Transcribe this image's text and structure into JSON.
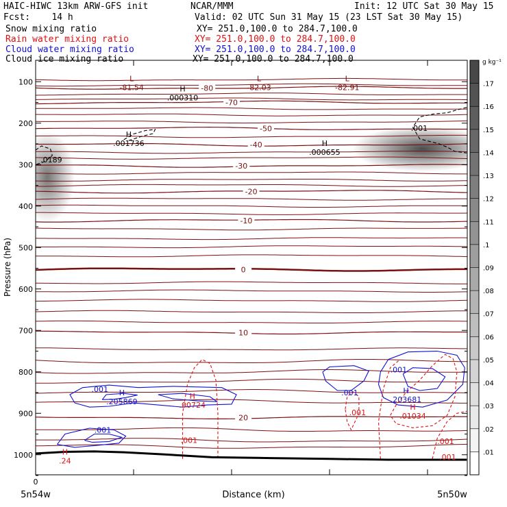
{
  "header": {
    "line1_left": "HAIC-HIWC 13km ARW-GFS init",
    "line1_mid": "NCAR/MMM",
    "line1_right": "Init: 12 UTC Sat 30 May 15",
    "line2_left": "Fcst:    14 h",
    "line2_right": "Valid: 02 UTC Sun 31 May 15 (23 LST Sat 30 May 15)",
    "fields": [
      {
        "name": "Snow mixing ratio",
        "xy": "XY= 251.0,100.0 to 284.7,100.0",
        "color": "#000000"
      },
      {
        "name": "Rain water mixing ratio",
        "xy": "XY= 251.0,100.0 to 284.7,100.0",
        "color": "#e01010"
      },
      {
        "name": "Cloud water mixing ratio",
        "xy": "XY= 251.0,100.0 to 284.7,100.0",
        "color": "#1010d0"
      },
      {
        "name": "Cloud ice mixing ratio",
        "xy": "XY= 251.0,100.0 to 284.7,100.0",
        "color": "#000000"
      }
    ]
  },
  "colors": {
    "temperature": "#7a1010",
    "rain": "#e01010",
    "cloud_water": "#1010d0",
    "cloud_ice": "#000000",
    "snow_shade": "#404040"
  },
  "chart_data": {
    "type": "cross-section",
    "ylabel": "Pressure (hPa)",
    "xlabel": "Distance (km)",
    "x_range_km": [
      0,
      440
    ],
    "x_ticks": [
      0,
      100,
      200,
      300,
      400
    ],
    "x_tick_labels": [
      "0",
      "",
      "",
      "",
      ""
    ],
    "x_end_labels": [
      "5n54w",
      "5n50w"
    ],
    "y_range": [
      50,
      1050
    ],
    "y_ticks": [
      100,
      200,
      300,
      400,
      500,
      600,
      700,
      800,
      900,
      1000
    ],
    "temperature_contours": [
      {
        "label": "-80",
        "p": 115,
        "label_x": 175
      },
      {
        "label": "-70",
        "p": 150,
        "label_x": 200
      },
      {
        "label": "-50",
        "p": 213,
        "label_x": 235
      },
      {
        "label": "-40",
        "p": 252,
        "label_x": 225
      },
      {
        "label": "-30",
        "p": 303,
        "label_x": 210
      },
      {
        "label": "-20",
        "p": 365,
        "label_x": 220
      },
      {
        "label": "-10",
        "p": 435,
        "label_x": 215
      },
      {
        "label": "0",
        "p": 553,
        "label_x": 212
      },
      {
        "label": "10",
        "p": 705,
        "label_x": 212
      },
      {
        "label": "20",
        "p": 910,
        "label_x": 212
      }
    ],
    "extrema": [
      {
        "letter": "L",
        "value": "-81.54",
        "x": 98,
        "p": 102,
        "color": "temperature"
      },
      {
        "letter": "L",
        "value": "-82.03",
        "x": 228,
        "p": 102,
        "color": "temperature"
      },
      {
        "letter": "L",
        "value": "-82.91",
        "x": 318,
        "p": 102,
        "color": "temperature"
      },
      {
        "letter": "H",
        "value": ".000310",
        "x": 150,
        "p": 127,
        "color": "cloud_ice"
      },
      {
        "letter": "H",
        "value": ".001736",
        "x": 95,
        "p": 237,
        "color": "cloud_ice"
      },
      {
        "letter": "H",
        "value": ".000655",
        "x": 295,
        "p": 258,
        "color": "cloud_ice"
      },
      {
        "letter": "H",
        "value": ".205869",
        "x": 88,
        "p": 860,
        "color": "cloud_water"
      },
      {
        "letter": "H",
        "value": ".203681",
        "x": 378,
        "p": 855,
        "color": "cloud_water"
      },
      {
        "letter": "H",
        "value": ".00724",
        "x": 160,
        "p": 868,
        "color": "rain"
      },
      {
        "letter": "H",
        "value": ".01034",
        "x": 385,
        "p": 895,
        "color": "rain"
      },
      {
        "letter": "H",
        "value": ".24",
        "x": 30,
        "p": 1003,
        "color": "rain"
      }
    ],
    "contour_labels": [
      {
        "text": ".0189",
        "x": 5,
        "p": 288,
        "color": "cloud_ice"
      },
      {
        "text": ".001",
        "x": 383,
        "p": 212,
        "color": "cloud_ice"
      },
      {
        "text": ".001",
        "x": 57,
        "p": 842,
        "color": "cloud_water"
      },
      {
        "text": ".001",
        "x": 60,
        "p": 940,
        "color": "cloud_water"
      },
      {
        "text": ".001",
        "x": 312,
        "p": 850,
        "color": "cloud_water"
      },
      {
        "text": ".001",
        "x": 362,
        "p": 795,
        "color": "cloud_water"
      },
      {
        "text": ".001",
        "x": 148,
        "p": 965,
        "color": "rain"
      },
      {
        "text": ".001",
        "x": 320,
        "p": 898,
        "color": "rain"
      },
      {
        "text": ".001",
        "x": 410,
        "p": 967,
        "color": "rain"
      },
      {
        "text": ".001",
        "x": 412,
        "p": 1005,
        "color": "rain"
      }
    ],
    "shaded_snow": [
      {
        "x": 12,
        "p": 330,
        "rx": 28,
        "rp": 110,
        "peak": 0.12
      },
      {
        "x": 395,
        "p": 262,
        "rx": 72,
        "rp": 55,
        "peak": 0.16
      }
    ],
    "colorbar": {
      "unit": "g kg⁻¹",
      "labels": [
        ".01",
        ".02",
        ".03",
        ".04",
        ".05",
        ".06",
        ".07",
        ".08",
        ".09",
        ".1",
        ".11",
        ".12",
        ".13",
        ".14",
        ".15",
        ".16",
        ".17"
      ]
    }
  }
}
